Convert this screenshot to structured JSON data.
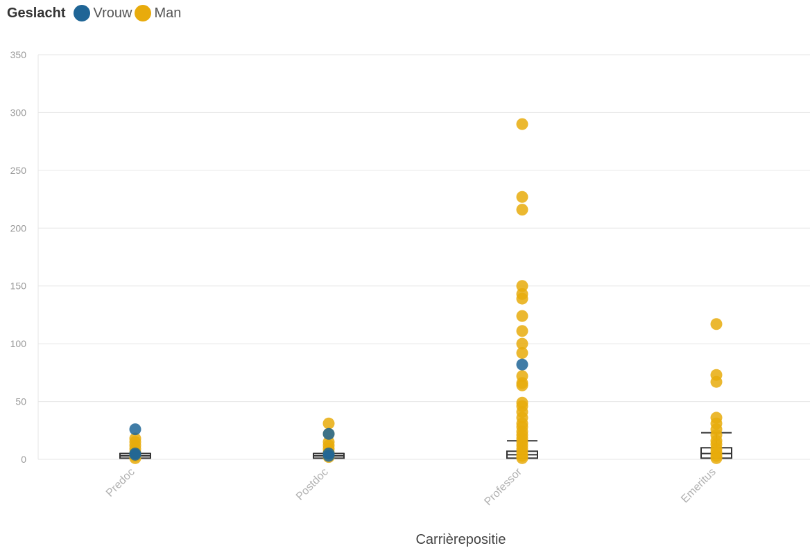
{
  "legend": {
    "title": "Geslacht",
    "items": [
      {
        "label": "Vrouw",
        "color": "#1f6596"
      },
      {
        "label": "Man",
        "color": "#e8ab0c"
      }
    ]
  },
  "chart_data": {
    "type": "scatter",
    "xlabel": "Carrièrepositie",
    "ylabel": "",
    "ylim": [
      0,
      350
    ],
    "yticks": [
      0,
      50,
      100,
      150,
      200,
      250,
      300,
      350
    ],
    "categories": [
      "Predoc",
      "Postdoc",
      "Professor",
      "Emeritus"
    ],
    "grid": true,
    "legend_position": "top-left",
    "series": [
      {
        "name": "Vrouw",
        "color": "#1f6596",
        "points": [
          {
            "x": "Predoc",
            "y": 26
          },
          {
            "x": "Predoc",
            "y": 5
          },
          {
            "x": "Predoc",
            "y": 4
          },
          {
            "x": "Postdoc",
            "y": 22
          },
          {
            "x": "Postdoc",
            "y": 5
          },
          {
            "x": "Postdoc",
            "y": 3
          },
          {
            "x": "Professor",
            "y": 82
          }
        ]
      },
      {
        "name": "Man",
        "color": "#e8ab0c",
        "points": [
          {
            "x": "Predoc",
            "y": 18
          },
          {
            "x": "Predoc",
            "y": 15
          },
          {
            "x": "Predoc",
            "y": 12
          },
          {
            "x": "Predoc",
            "y": 9
          },
          {
            "x": "Predoc",
            "y": 6
          },
          {
            "x": "Predoc",
            "y": 3
          },
          {
            "x": "Predoc",
            "y": 1
          },
          {
            "x": "Postdoc",
            "y": 31
          },
          {
            "x": "Postdoc",
            "y": 22
          },
          {
            "x": "Postdoc",
            "y": 15
          },
          {
            "x": "Postdoc",
            "y": 12
          },
          {
            "x": "Postdoc",
            "y": 9
          },
          {
            "x": "Postdoc",
            "y": 6
          },
          {
            "x": "Postdoc",
            "y": 2
          },
          {
            "x": "Professor",
            "y": 290
          },
          {
            "x": "Professor",
            "y": 227
          },
          {
            "x": "Professor",
            "y": 216
          },
          {
            "x": "Professor",
            "y": 150
          },
          {
            "x": "Professor",
            "y": 143
          },
          {
            "x": "Professor",
            "y": 139
          },
          {
            "x": "Professor",
            "y": 124
          },
          {
            "x": "Professor",
            "y": 111
          },
          {
            "x": "Professor",
            "y": 100
          },
          {
            "x": "Professor",
            "y": 92
          },
          {
            "x": "Professor",
            "y": 72
          },
          {
            "x": "Professor",
            "y": 66
          },
          {
            "x": "Professor",
            "y": 64
          },
          {
            "x": "Professor",
            "y": 49
          },
          {
            "x": "Professor",
            "y": 46
          },
          {
            "x": "Professor",
            "y": 41
          },
          {
            "x": "Professor",
            "y": 36
          },
          {
            "x": "Professor",
            "y": 31
          },
          {
            "x": "Professor",
            "y": 28
          },
          {
            "x": "Professor",
            "y": 24
          },
          {
            "x": "Professor",
            "y": 21
          },
          {
            "x": "Professor",
            "y": 18
          },
          {
            "x": "Professor",
            "y": 15
          },
          {
            "x": "Professor",
            "y": 12
          },
          {
            "x": "Professor",
            "y": 9
          },
          {
            "x": "Professor",
            "y": 6
          },
          {
            "x": "Professor",
            "y": 3
          },
          {
            "x": "Professor",
            "y": 1
          },
          {
            "x": "Emeritus",
            "y": 117
          },
          {
            "x": "Emeritus",
            "y": 73
          },
          {
            "x": "Emeritus",
            "y": 67
          },
          {
            "x": "Emeritus",
            "y": 36
          },
          {
            "x": "Emeritus",
            "y": 31
          },
          {
            "x": "Emeritus",
            "y": 26
          },
          {
            "x": "Emeritus",
            "y": 21
          },
          {
            "x": "Emeritus",
            "y": 16
          },
          {
            "x": "Emeritus",
            "y": 13
          },
          {
            "x": "Emeritus",
            "y": 9
          },
          {
            "x": "Emeritus",
            "y": 6
          },
          {
            "x": "Emeritus",
            "y": 3
          },
          {
            "x": "Emeritus",
            "y": 1
          }
        ]
      }
    ],
    "boxplots": [
      {
        "category": "Predoc",
        "whisker_low": 0,
        "q1": 1,
        "median": 3,
        "q3": 5,
        "whisker_high": 5
      },
      {
        "category": "Postdoc",
        "whisker_low": 0,
        "q1": 1,
        "median": 3,
        "q3": 5,
        "whisker_high": 5
      },
      {
        "category": "Professor",
        "whisker_low": 0,
        "q1": 1,
        "median": 4,
        "q3": 7,
        "whisker_high": 16
      },
      {
        "category": "Emeritus",
        "whisker_low": 0,
        "q1": 1,
        "median": 5,
        "q3": 10,
        "whisker_high": 23
      }
    ]
  }
}
